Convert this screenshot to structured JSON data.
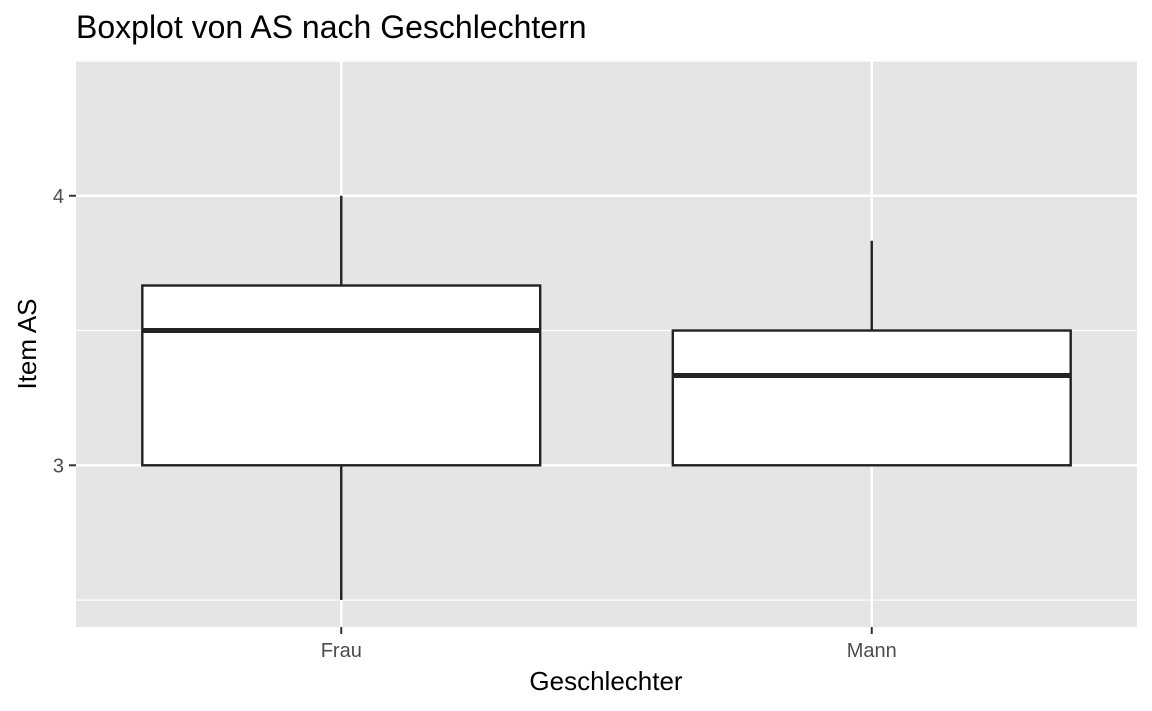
{
  "chart_data": {
    "type": "boxplot",
    "title": "Boxplot von AS nach Geschlechtern",
    "xlabel": "Geschlechter",
    "ylabel": "Item AS",
    "categories": [
      "Frau",
      "Mann"
    ],
    "boxes": [
      {
        "category": "Frau",
        "whisker_low": 2.5,
        "q1": 3.0,
        "median": 3.5,
        "q3": 3.667,
        "whisker_high": 4.0
      },
      {
        "category": "Mann",
        "whisker_low": 3.0,
        "q1": 3.0,
        "median": 3.333,
        "q3": 3.5,
        "whisker_high": 3.833
      }
    ],
    "y_ticks": [
      3,
      4
    ],
    "ylim": [
      2.4,
      4.5
    ],
    "grid": true,
    "panel_background": "#e5e5e5",
    "grid_color": "#ffffff",
    "box_fill": "#ffffff",
    "line_color": "#222222"
  }
}
